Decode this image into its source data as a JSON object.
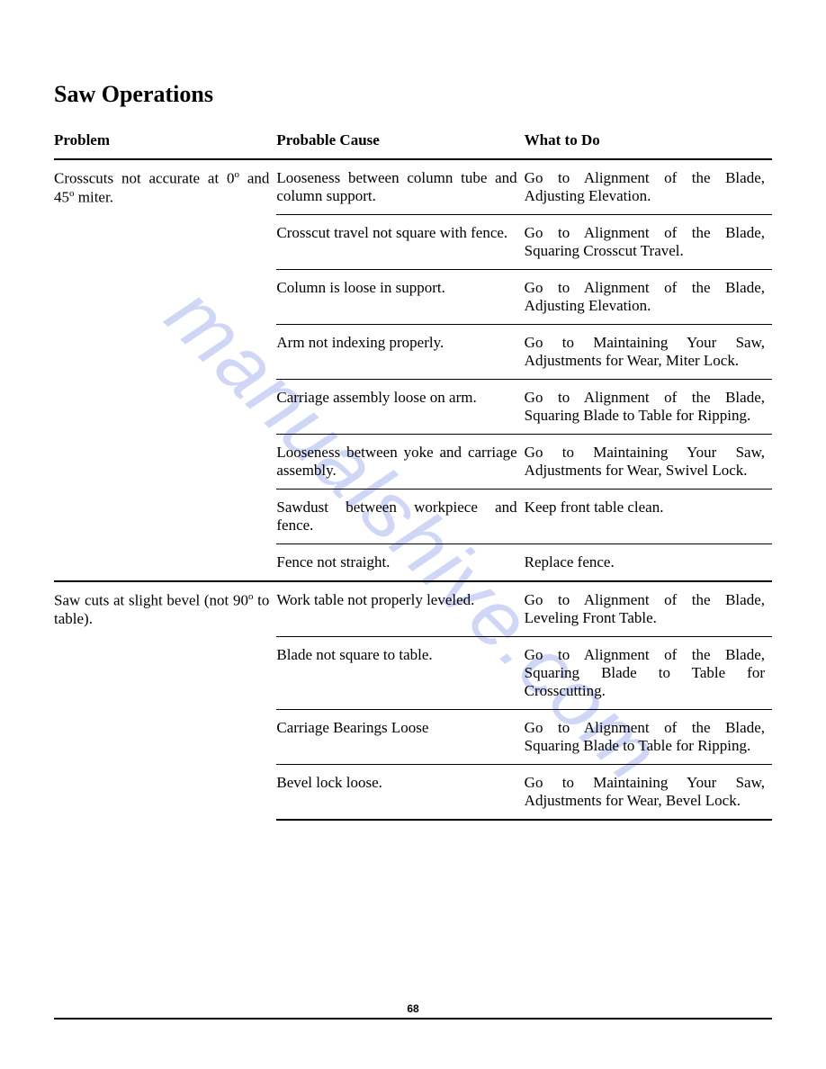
{
  "page_title": "Saw Operations",
  "headers": {
    "problem": "Problem",
    "cause": "Probable Cause",
    "what": "What to Do"
  },
  "watermark": "manualshive.com",
  "page_number": "68",
  "sections": [
    {
      "problem_html": "Crosscuts not accurate at 0° and 45° miter.",
      "rows": [
        {
          "cause": "Looseness between column tube and column support.",
          "what": "Go to Alignment of the Blade, Adjusting Elevation."
        },
        {
          "cause": "Crosscut travel not square with fence.",
          "what": "Go to Alignment of the Blade, Squaring Crosscut Travel."
        },
        {
          "cause": "Column is loose in support.",
          "what": "Go to Alignment of the Blade, Adjusting Elevation."
        },
        {
          "cause": "Arm not indexing properly.",
          "what": "Go to Maintaining Your Saw, Adjustments for Wear, Miter Lock."
        },
        {
          "cause": "Carriage assembly loose on arm.",
          "what": "Go to Alignment of the Blade, Squaring Blade to Table for Ripping."
        },
        {
          "cause": "Looseness between yoke and carriage assembly.",
          "what": "Go to Maintaining Your Saw, Adjustments for Wear, Swivel Lock."
        },
        {
          "cause": "Sawdust between workpiece and fence.",
          "what": "Keep front table clean."
        },
        {
          "cause": "Fence not straight.",
          "what": "Replace fence."
        }
      ]
    },
    {
      "problem_html": "Saw cuts at slight bevel (not 90° to table).",
      "rows": [
        {
          "cause": "Work table not properly leveled.",
          "what": "Go to Alignment of the Blade, Leveling Front Table."
        },
        {
          "cause": "Blade not square to table.",
          "what": "Go to Alignment of the Blade, Squaring Blade to Table for Crosscutting."
        },
        {
          "cause": "Carriage Bearings Loose",
          "what": "Go to Alignment of the Blade, Squaring Blade to Table for Ripping."
        },
        {
          "cause": "Bevel lock loose.",
          "what": "Go to Maintaining Your Saw, Adjustments for Wear, Bevel Lock."
        }
      ]
    }
  ],
  "colors": {
    "text": "#000000",
    "background": "#ffffff",
    "watermark": "rgba(120,140,230,0.35)",
    "rule": "#000000"
  }
}
